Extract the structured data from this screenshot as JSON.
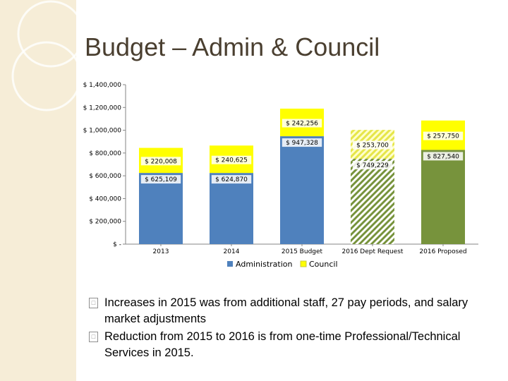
{
  "slide": {
    "title": "Budget – Admin & Council",
    "bullets": [
      "Increases in 2015 was from additional staff, 27 pay periods, and salary market adjustments",
      "Reduction from 2015 to 2016 is from one-time Professional/Technical Services in 2015."
    ],
    "bullet_icon": "square-bullet-icon"
  },
  "colors": {
    "administration": "#4f81bd",
    "council": "#ffff00",
    "hatch": "#77933c",
    "proposed": "#77933c",
    "background_stripe": "#f6edd7"
  },
  "chart_data": {
    "type": "bar",
    "stacked": true,
    "categories": [
      "2013",
      "2014",
      "2015 Budget",
      "2016 Dept Request",
      "2016 Proposed"
    ],
    "series": [
      {
        "name": "Administration",
        "values": [
          625109,
          624870,
          947328,
          749229,
          827540
        ],
        "labels": [
          "$ 625,109",
          "$ 624,870",
          "$ 947,328",
          "$ 749,229",
          "$ 827,540"
        ]
      },
      {
        "name": "Council",
        "values": [
          220008,
          240625,
          242256,
          253700,
          257750
        ],
        "labels": [
          "$ 220,008",
          "$ 240,625",
          "$ 242,256",
          "$ 253,700",
          "$ 257,750"
        ]
      }
    ],
    "y_ticks": [
      0,
      200000,
      400000,
      600000,
      800000,
      1000000,
      1200000,
      1400000
    ],
    "y_tick_labels": [
      "$ -",
      "$ 200,000",
      "$ 400,000",
      "$ 600,000",
      "$ 800,000",
      "$ 1,000,000",
      "$ 1,200,000",
      "$ 1,400,000"
    ],
    "ylim": [
      0,
      1400000
    ],
    "grid": false,
    "legend": "bottom",
    "fills": [
      "solid",
      "solid",
      "solid",
      "hatched",
      "solid"
    ]
  }
}
